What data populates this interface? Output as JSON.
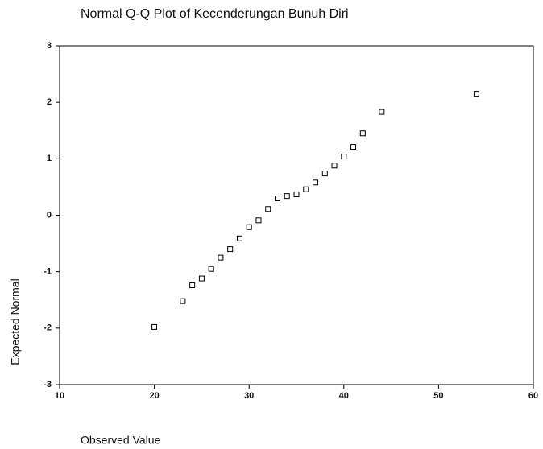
{
  "chart_data": {
    "type": "scatter",
    "title": "Normal Q-Q Plot of Kecenderungan Bunuh Diri",
    "x_label": "Observed Value",
    "y_label": "Expected Normal",
    "color": "#000000",
    "x": [
      20,
      23,
      24,
      25,
      26,
      27,
      28,
      29,
      30,
      31,
      32,
      33,
      34,
      35,
      36,
      37,
      38,
      39,
      40,
      41,
      42,
      44,
      54
    ],
    "values": [
      -1.98,
      -1.52,
      -1.24,
      -1.12,
      -0.95,
      -0.75,
      -0.6,
      -0.41,
      -0.21,
      -0.09,
      0.11,
      0.3,
      0.34,
      0.37,
      0.46,
      0.58,
      0.74,
      0.88,
      1.04,
      1.21,
      1.45,
      1.83,
      2.15
    ],
    "xlim": [
      10,
      60
    ],
    "xticks": [
      10,
      20,
      30,
      40,
      50,
      60
    ],
    "ylim": [
      -3,
      3
    ],
    "yticks": [
      -3,
      -2,
      -1,
      0,
      1,
      2,
      3
    ]
  }
}
